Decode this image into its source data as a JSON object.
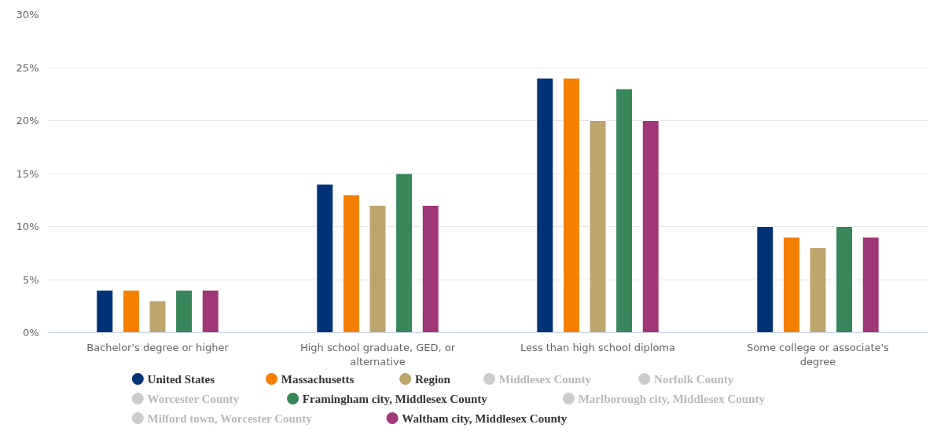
{
  "chart_data": {
    "type": "bar",
    "categories": [
      "Bachelor's degree or higher",
      "High school graduate, GED, or alternative",
      "Less than high school diploma",
      "Some college or associate's degree"
    ],
    "series": [
      {
        "name": "United States",
        "color": "#003278",
        "values": [
          4,
          14,
          24,
          10
        ]
      },
      {
        "name": "Massachusetts",
        "color": "#f57f00",
        "values": [
          4,
          13,
          24,
          9
        ]
      },
      {
        "name": "Region",
        "color": "#bea56e",
        "values": [
          3,
          12,
          20,
          8
        ]
      },
      {
        "name": "Middlesex County",
        "color": "#cccccc",
        "values": [
          null,
          null,
          null,
          null
        ]
      },
      {
        "name": "Norfolk County",
        "color": "#cccccc",
        "values": [
          null,
          null,
          null,
          null
        ]
      },
      {
        "name": "Worcester County",
        "color": "#cccccc",
        "values": [
          null,
          null,
          null,
          null
        ]
      },
      {
        "name": "Framingham city, Middlesex County",
        "color": "#37875a",
        "values": [
          4,
          15,
          23,
          10
        ]
      },
      {
        "name": "Marlborough city, Middlesex County",
        "color": "#cccccc",
        "values": [
          null,
          null,
          null,
          null
        ]
      },
      {
        "name": "Milford town, Worcester County",
        "color": "#cccccc",
        "values": [
          null,
          null,
          null,
          null
        ]
      },
      {
        "name": "Waltham city, Middlesex County",
        "color": "#a03778",
        "values": [
          4,
          12,
          20,
          9
        ]
      }
    ],
    "ylim": [
      0,
      30
    ],
    "yticks": [
      {
        "value": 0,
        "label": "0%"
      },
      {
        "value": 5,
        "label": "5%"
      },
      {
        "value": 10,
        "label": "10%"
      },
      {
        "value": 15,
        "label": "15%"
      },
      {
        "value": 20,
        "label": "20%"
      },
      {
        "value": 25,
        "label": "25%"
      },
      {
        "value": 30,
        "label": "30%"
      }
    ],
    "grid": "y",
    "legend": "bottom"
  }
}
